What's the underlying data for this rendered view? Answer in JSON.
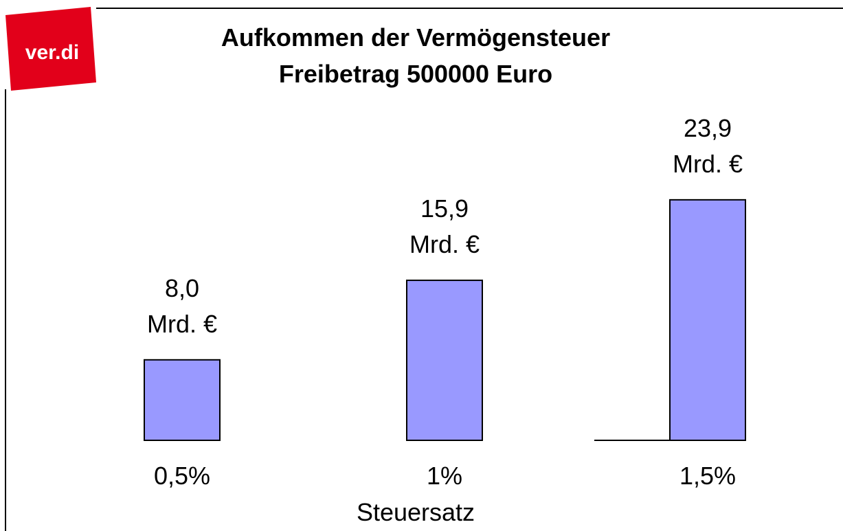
{
  "logo": "ver.di",
  "chart_data": {
    "type": "bar",
    "title": "Aufkommen der Vermögensteuer",
    "subtitle": "Freibetrag 500000 Euro",
    "x_label": "Steuersatz",
    "categories": [
      "0,5%",
      "1%",
      "1,5%"
    ],
    "values": [
      8.0,
      15.9,
      23.9
    ],
    "value_labels": [
      "8,0 Mrd. €",
      "15,9 Mrd. €",
      "23,9 Mrd. €"
    ],
    "color": "#9999ff"
  }
}
